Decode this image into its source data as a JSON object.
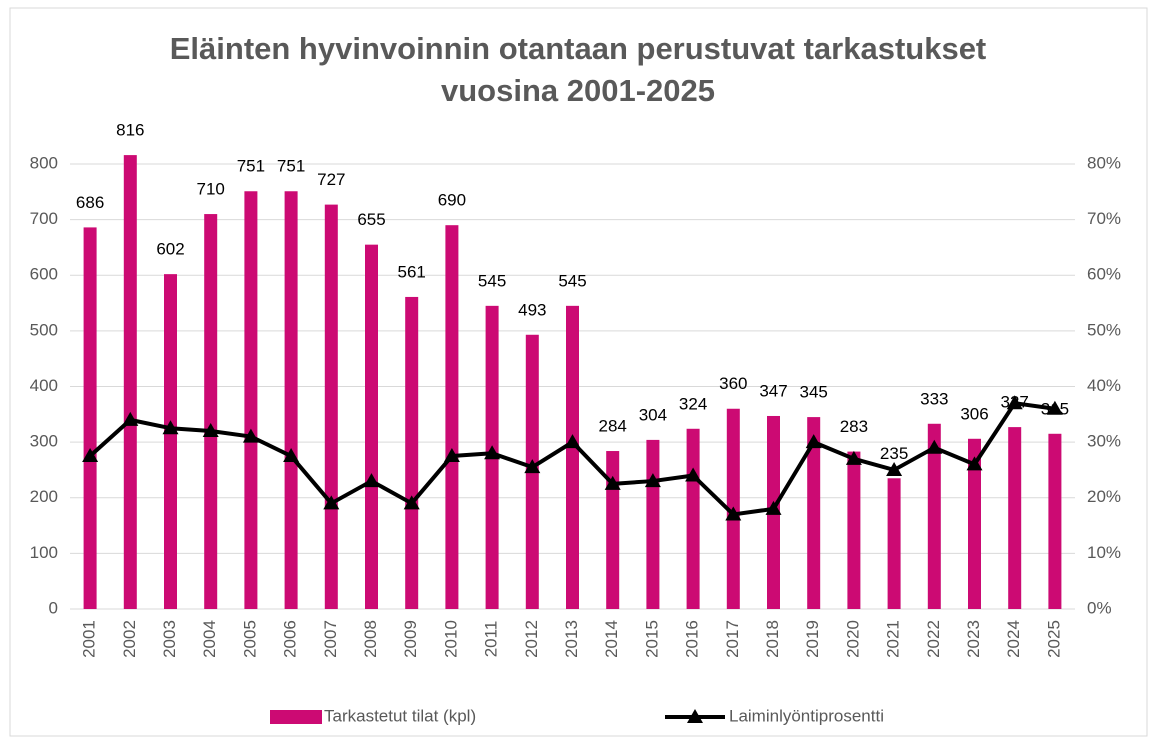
{
  "chart_data": {
    "type": "bar_line",
    "title": "Eläinten hyvinvoinnin otantaan perustuvat tarkastukset vuosina 2001-2025",
    "categories": [
      "2001",
      "2002",
      "2003",
      "2004",
      "2005",
      "2006",
      "2007",
      "2008",
      "2009",
      "2010",
      "2011",
      "2012",
      "2013",
      "2014",
      "2015",
      "2016",
      "2017",
      "2018",
      "2019",
      "2020",
      "2021",
      "2022",
      "2023",
      "2024",
      "2025"
    ],
    "series": [
      {
        "name": "Tarkastetut tilat (kpl)",
        "type": "bar",
        "color": "#cc0a73",
        "values": [
          686,
          816,
          602,
          710,
          751,
          751,
          727,
          655,
          561,
          690,
          545,
          493,
          545,
          284,
          304,
          324,
          360,
          347,
          345,
          283,
          235,
          333,
          306,
          327,
          315
        ]
      },
      {
        "name": "Laiminlyöntiprosentti",
        "type": "line",
        "axis": "y2",
        "color": "#000000",
        "marker": "triangle",
        "values": [
          27.5,
          34,
          32.5,
          32,
          31,
          27.5,
          19,
          23,
          19,
          27.5,
          28,
          25.5,
          30,
          22.5,
          23,
          24,
          17,
          18,
          30,
          27,
          25,
          29,
          26,
          37,
          36
        ]
      }
    ],
    "ylim": [
      0,
      800
    ],
    "yticks": [
      0,
      100,
      200,
      300,
      400,
      500,
      600,
      700,
      800
    ],
    "y2lim": [
      0,
      80
    ],
    "y2ticks": [
      {
        "value": 0,
        "label": "0%"
      },
      {
        "value": 10,
        "label": "10%"
      },
      {
        "value": 20,
        "label": "20%"
      },
      {
        "value": 30,
        "label": "30%"
      },
      {
        "value": 40,
        "label": "40%"
      },
      {
        "value": 50,
        "label": "50%"
      },
      {
        "value": 60,
        "label": "60%"
      },
      {
        "value": 70,
        "label": "70%"
      },
      {
        "value": 80,
        "label": "80%"
      }
    ],
    "grid": true,
    "legend": "bottom"
  }
}
